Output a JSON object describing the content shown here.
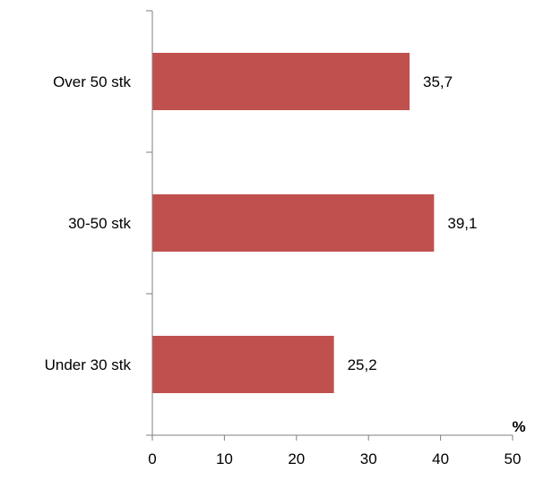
{
  "chart_data": {
    "type": "bar",
    "orientation": "horizontal",
    "categories": [
      "Over 50 stk",
      "30-50 stk",
      "Under 30 stk"
    ],
    "values": [
      35.7,
      39.1,
      25.2
    ],
    "value_labels": [
      "35,7",
      "39,1",
      "25,2"
    ],
    "xlabel": "%",
    "ylabel": "",
    "xlim": [
      0,
      50
    ],
    "xticks": [
      "0",
      "10",
      "20",
      "30",
      "40",
      "50"
    ],
    "grid": false,
    "legend": "none",
    "bar_color": "#c0504d"
  }
}
